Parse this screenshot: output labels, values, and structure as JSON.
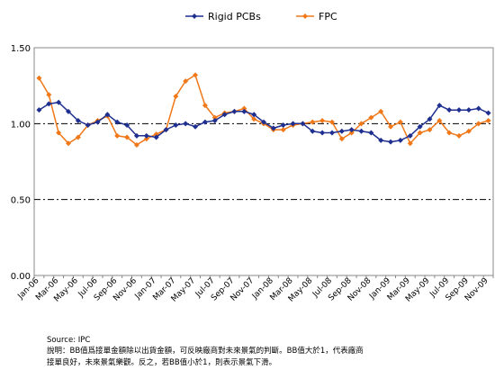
{
  "chart_data": {
    "type": "line",
    "title": "",
    "xlabel": "",
    "ylabel": "",
    "ylim": [
      0,
      1.5
    ],
    "yticks": [
      "0.00",
      "0.50",
      "1.00",
      "1.50"
    ],
    "grid": "horizontal dash-dot",
    "legend_position": "top-center",
    "x": [
      "Jan-06",
      "Feb-06",
      "Mar-06",
      "Apr-06",
      "May-06",
      "Jun-06",
      "Jul-06",
      "Aug-06",
      "Sep-06",
      "Oct-06",
      "Nov-06",
      "Dec-06",
      "Jan-07",
      "Feb-07",
      "Mar-07",
      "Apr-07",
      "May-07",
      "Jun-07",
      "Jul-07",
      "Aug-07",
      "Sep-07",
      "Oct-07",
      "Nov-07",
      "Dec-07",
      "Jan-08",
      "Feb-08",
      "Mar-08",
      "Apr-08",
      "May-08",
      "Jun-08",
      "Jul-08",
      "Aug-08",
      "Sep-08",
      "Oct-08",
      "Nov-08",
      "Dec-08",
      "Jan-09",
      "Feb-09",
      "Mar-09",
      "Apr-09",
      "May-09",
      "Jun-09",
      "Jul-09",
      "Aug-09",
      "Sep-09",
      "Oct-09",
      "Nov-09"
    ],
    "x_tick_labels": [
      "Jan-06",
      "Mar-06",
      "May-06",
      "Jul-06",
      "Sep-06",
      "Nov-06",
      "Jan-07",
      "Mar-07",
      "May-07",
      "Jul-07",
      "Sep-07",
      "Nov-07",
      "Jan-08",
      "Mar-08",
      "May-08",
      "Jul-08",
      "Sep-08",
      "Nov-08",
      "Jan-09",
      "Mar-09",
      "May-09",
      "Jul-09",
      "Sep-09",
      "Nov-09"
    ],
    "series": [
      {
        "name": "Rigid PCBs",
        "color": "#1f2f8f",
        "marker": "diamond",
        "values": [
          1.09,
          1.13,
          1.14,
          1.08,
          1.02,
          0.99,
          1.01,
          1.06,
          1.01,
          0.99,
          0.92,
          0.92,
          0.91,
          0.96,
          0.99,
          1.0,
          0.98,
          1.01,
          1.02,
          1.06,
          1.08,
          1.08,
          1.06,
          1.01,
          0.97,
          0.99,
          1.0,
          1.0,
          0.95,
          0.94,
          0.94,
          0.95,
          0.96,
          0.95,
          0.94,
          0.89,
          0.88,
          0.89,
          0.92,
          0.98,
          1.03,
          1.12,
          1.09,
          1.09,
          1.09,
          1.1,
          1.07
        ]
      },
      {
        "name": "FPC",
        "color": "#f07818",
        "marker": "diamond",
        "values": [
          1.3,
          1.19,
          0.94,
          0.87,
          0.91,
          0.99,
          1.02,
          1.05,
          0.92,
          0.91,
          0.86,
          0.9,
          0.93,
          0.96,
          1.18,
          1.28,
          1.32,
          1.12,
          1.04,
          1.07,
          1.08,
          1.1,
          1.03,
          1.0,
          0.96,
          0.96,
          0.99,
          1.0,
          1.01,
          1.02,
          1.01,
          0.9,
          0.94,
          1.0,
          1.04,
          1.08,
          0.98,
          1.01,
          0.87,
          0.94,
          0.96,
          1.02,
          0.94,
          0.92,
          0.95,
          1.0,
          1.02
        ]
      }
    ]
  },
  "source_note": "Source: IPC",
  "caption": {
    "line1": "說明：BB值爲接單金額除以出貨金額，可反映廠商對未來景氣的判斷。BB值大於1，代表廠商",
    "line2": "接單良好，未來景氣樂觀。反之，若BB值小於1，則表示景氣下滑。"
  }
}
